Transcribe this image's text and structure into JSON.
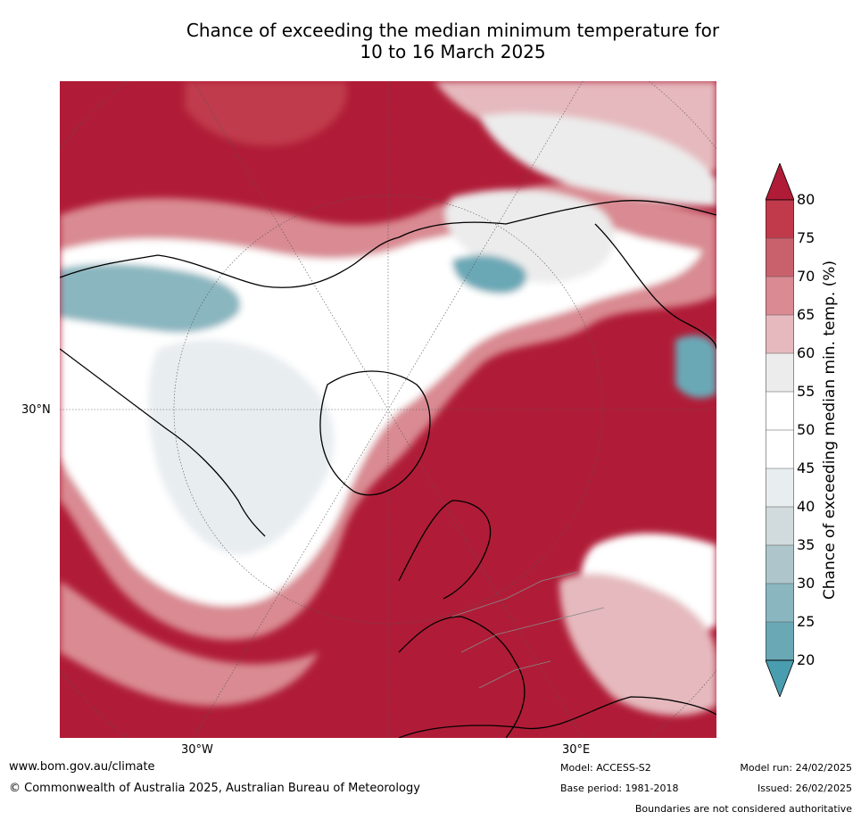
{
  "title": {
    "line1": "Chance of exceeding the median minimum temperature for",
    "line2": "10 to 16 March 2025"
  },
  "map": {
    "lat_label": "30°N",
    "lon_labels": [
      "30°W",
      "30°E"
    ],
    "colors": {
      "above_80": "#b01c37",
      "75_80": "#c03a4b",
      "70_75": "#c9616d",
      "65_70": "#d98a92",
      "60_65": "#e5b9bd",
      "55_60": "#ececec",
      "45_55": "#ffffff",
      "40_45": "#e8edf0",
      "35_40": "#d1dadc",
      "30_35": "#aec6cb",
      "25_30": "#8ab6c0",
      "20_25": "#6aa8b6",
      "below_20": "#4a9dae",
      "coast": "#000000",
      "borders": "#888888"
    }
  },
  "colorbar": {
    "label": "Chance of exceeding median min. temp. (%)",
    "ticks": [
      "80",
      "75",
      "70",
      "65",
      "60",
      "55",
      "50",
      "45",
      "40",
      "35",
      "30",
      "25",
      "20"
    ]
  },
  "footer": {
    "website": "www.bom.gov.au/climate",
    "copyright": "© Commonwealth of Australia 2025, Australian Bureau of Meteorology",
    "model": "Model: ACCESS-S2",
    "base_period": "Base period: 1981-2018",
    "model_run": "Model run: 24/02/2025",
    "issued": "Issued: 26/02/2025",
    "disclaimer": "Boundaries are not considered authoritative"
  }
}
